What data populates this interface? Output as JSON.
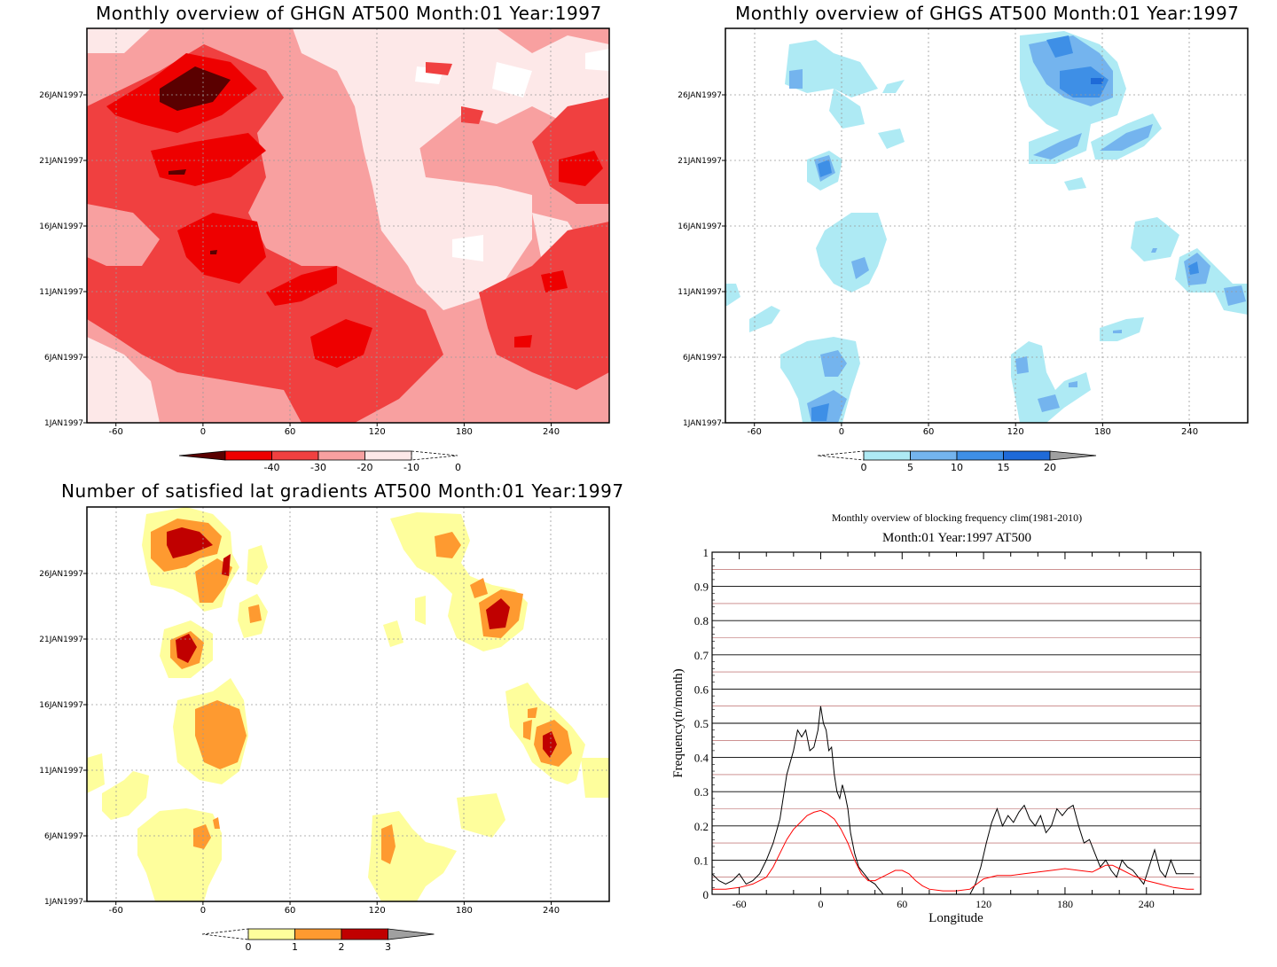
{
  "panels": {
    "ghgn": {
      "title": "Monthly overview of GHGN AT500 Month:01 Year:1997",
      "colorbar": {
        "labels": [
          "-40",
          "-30",
          "-20",
          "-10",
          "0"
        ],
        "colors": [
          "#5a0000",
          "#ee0000",
          "#f04040",
          "#f8a0a0",
          "#fde8e8"
        ]
      }
    },
    "ghgs": {
      "title": "Monthly overview of GHGS AT500 Month:01 Year:1997",
      "colorbar": {
        "labels": [
          "0",
          "5",
          "10",
          "15",
          "20"
        ],
        "colors": [
          "#aeeaf4",
          "#74b4ee",
          "#3e8fe6",
          "#1e6ad8",
          "#a0a0a0"
        ]
      }
    },
    "lat": {
      "title": "Number of satisfied lat gradients AT500 Month:01 Year:1997",
      "colorbar": {
        "labels": [
          "0",
          "1",
          "2",
          "3"
        ],
        "colors": [
          "#fefe9c",
          "#fe9a30",
          "#c00000",
          "#a0a0a0"
        ]
      }
    },
    "freq": {
      "title": "Monthly overview of blocking frequency clim(1981-2010)",
      "subtitle": "Month:01 Year:1997  AT500"
    }
  },
  "map_axes": {
    "x_ticks": [
      "-60",
      "0",
      "60",
      "120",
      "180",
      "240"
    ],
    "y_ticks": [
      "1JAN1997",
      "6JAN1997",
      "11JAN1997",
      "16JAN1997",
      "21JAN1997",
      "26JAN1997"
    ]
  },
  "chart_data": [
    {
      "type": "heatmap",
      "title": "Monthly overview of GHGN AT500 Month:01 Year:1997",
      "x_ticks": [
        -60,
        0,
        60,
        120,
        180,
        240
      ],
      "xlim": [
        -80,
        280
      ],
      "y_ticks": [
        "1JAN1997",
        "6JAN1997",
        "11JAN1997",
        "16JAN1997",
        "21JAN1997",
        "26JAN1997"
      ],
      "levels": [
        -40,
        -30,
        -20,
        -10,
        0
      ]
    },
    {
      "type": "heatmap",
      "title": "Monthly overview of GHGS AT500 Month:01 Year:1997",
      "x_ticks": [
        -60,
        0,
        60,
        120,
        180,
        240
      ],
      "xlim": [
        -80,
        280
      ],
      "y_ticks": [
        "1JAN1997",
        "6JAN1997",
        "11JAN1997",
        "16JAN1997",
        "21JAN1997",
        "26JAN1997"
      ],
      "levels": [
        0,
        5,
        10,
        15,
        20
      ]
    },
    {
      "type": "heatmap",
      "title": "Number of satisfied lat gradients AT500 Month:01 Year:1997",
      "x_ticks": [
        -60,
        0,
        60,
        120,
        180,
        240
      ],
      "xlim": [
        -80,
        280
      ],
      "y_ticks": [
        "1JAN1997",
        "6JAN1997",
        "11JAN1997",
        "16JAN1997",
        "21JAN1997",
        "26JAN1997"
      ],
      "levels": [
        0,
        1,
        2,
        3
      ]
    },
    {
      "type": "line",
      "title": "Monthly overview of blocking frequency clim(1981-2010)",
      "subtitle": "Month:01 Year:1997  AT500",
      "xlabel": "Longitude",
      "ylabel": "Frequency(n/month)",
      "xlim": [
        -80,
        280
      ],
      "ylim": [
        0,
        1
      ],
      "x_ticks": [
        -60,
        0,
        60,
        120,
        180,
        240
      ],
      "y_ticks": [
        0,
        0.1,
        0.2,
        0.3,
        0.4,
        0.5,
        0.6,
        0.7,
        0.8,
        0.9,
        1
      ],
      "grid": true,
      "series": [
        {
          "color": "#000000",
          "x": [
            -80,
            -75,
            -70,
            -65,
            -60,
            -55,
            -50,
            -45,
            -40,
            -35,
            -30,
            -25,
            -20,
            -17,
            -14,
            -11,
            -8,
            -5,
            -2,
            0,
            2,
            4,
            6,
            8,
            10,
            12,
            14,
            16,
            18,
            20,
            22,
            25,
            28,
            32,
            36,
            40,
            42,
            44,
            46
          ],
          "y": [
            0.06,
            0.04,
            0.03,
            0.04,
            0.06,
            0.03,
            0.04,
            0.06,
            0.1,
            0.15,
            0.22,
            0.35,
            0.42,
            0.48,
            0.46,
            0.48,
            0.42,
            0.43,
            0.48,
            0.55,
            0.5,
            0.48,
            0.42,
            0.43,
            0.35,
            0.3,
            0.28,
            0.32,
            0.29,
            0.25,
            0.18,
            0.12,
            0.08,
            0.06,
            0.04,
            0.03,
            0.02,
            0.01,
            0
          ]
        },
        {
          "color": "#000000",
          "x": [
            110,
            114,
            118,
            122,
            126,
            130,
            134,
            138,
            142,
            146,
            150,
            154,
            158,
            162,
            166,
            170,
            174,
            178,
            182,
            186,
            190,
            194,
            198,
            202,
            206,
            210,
            214,
            218,
            222,
            226,
            230,
            234,
            238,
            242,
            246,
            250,
            254,
            258,
            262,
            266,
            270,
            275
          ],
          "y": [
            0,
            0.03,
            0.08,
            0.15,
            0.21,
            0.25,
            0.2,
            0.23,
            0.21,
            0.24,
            0.26,
            0.22,
            0.2,
            0.23,
            0.18,
            0.2,
            0.25,
            0.23,
            0.25,
            0.26,
            0.2,
            0.15,
            0.16,
            0.12,
            0.08,
            0.1,
            0.07,
            0.05,
            0.1,
            0.08,
            0.07,
            0.05,
            0.03,
            0.08,
            0.13,
            0.07,
            0.05,
            0.1,
            0.06,
            0.06,
            0.06,
            0.06
          ]
        },
        {
          "color": "#ff0000",
          "x": [
            -80,
            -70,
            -60,
            -50,
            -40,
            -35,
            -30,
            -25,
            -20,
            -15,
            -10,
            -5,
            0,
            5,
            10,
            15,
            20,
            25,
            30,
            35,
            40,
            45,
            50,
            55,
            60,
            65,
            70,
            75,
            80,
            90,
            100,
            110,
            115,
            120,
            130,
            140,
            150,
            160,
            170,
            180,
            190,
            200,
            205,
            210,
            215,
            220,
            230,
            240,
            250,
            260,
            270,
            275
          ],
          "y": [
            0.015,
            0.015,
            0.02,
            0.03,
            0.05,
            0.08,
            0.12,
            0.16,
            0.19,
            0.21,
            0.23,
            0.24,
            0.245,
            0.235,
            0.22,
            0.19,
            0.15,
            0.1,
            0.06,
            0.04,
            0.04,
            0.05,
            0.06,
            0.07,
            0.07,
            0.06,
            0.04,
            0.025,
            0.015,
            0.01,
            0.01,
            0.015,
            0.03,
            0.045,
            0.055,
            0.055,
            0.06,
            0.065,
            0.07,
            0.075,
            0.07,
            0.065,
            0.075,
            0.085,
            0.085,
            0.075,
            0.055,
            0.04,
            0.03,
            0.02,
            0.015,
            0.015
          ]
        }
      ]
    }
  ]
}
